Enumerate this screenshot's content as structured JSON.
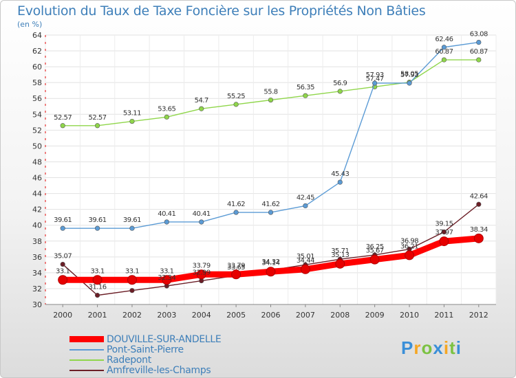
{
  "chart_data": {
    "type": "line",
    "title": "Evolution du Taux de Taxe Foncière sur les Propriétés Non Bâties",
    "subtitle": "(en %)",
    "xlabel": "",
    "ylabel": "",
    "ylim": [
      30,
      64
    ],
    "yticks": [
      30,
      32,
      34,
      36,
      38,
      40,
      42,
      44,
      46,
      48,
      50,
      52,
      54,
      56,
      58,
      60,
      62,
      64
    ],
    "categories": [
      "2000",
      "2001",
      "2002",
      "2003",
      "2004",
      "2005",
      "2006",
      "2007",
      "2008",
      "2009",
      "2010",
      "2011",
      "2012"
    ],
    "grid": true,
    "series": [
      {
        "name": "DOUVILLE-SUR-ANDELLE",
        "color": "#ff0000",
        "values": [
          33.1,
          33.1,
          33.1,
          33.1,
          33.79,
          33.79,
          34.14,
          34.44,
          35.13,
          35.67,
          36.21,
          37.97,
          38.34
        ],
        "labels": [
          "33.1",
          "33.1",
          "33.1",
          "33.1",
          "33.79",
          "33.79",
          "34.14",
          "34.44",
          "35.13",
          "35.67",
          "36.21",
          "37.97",
          "38.34"
        ]
      },
      {
        "name": "Pont-Saint-Pierre",
        "color": "#5b9bd5",
        "values": [
          39.61,
          39.61,
          39.61,
          40.41,
          40.41,
          41.62,
          41.62,
          42.45,
          45.43,
          57.93,
          57.93,
          62.46,
          63.08
        ],
        "labels": [
          "39.61",
          "39.61",
          "39.61",
          "40.41",
          "40.41",
          "41.62",
          "41.62",
          "42.45",
          "45.43",
          "57.93",
          "57.93",
          "62.46",
          "63.08"
        ]
      },
      {
        "name": "Radepont",
        "color": "#8fd64a",
        "values": [
          52.57,
          52.57,
          53.11,
          53.65,
          54.7,
          55.25,
          55.8,
          56.35,
          56.9,
          57.47,
          58.05,
          60.87,
          60.87
        ],
        "labels": [
          "52.57",
          "52.57",
          "53.11",
          "53.65",
          "54.7",
          "55.25",
          "55.8",
          "56.35",
          "56.9",
          "57.47",
          "58.05",
          "60.87",
          "60.87"
        ]
      },
      {
        "name": "Amfreville-les-Champs",
        "color": "#6b1e26",
        "values": [
          35.07,
          31.16,
          31.76,
          32.34,
          32.99,
          33.65,
          34.32,
          35.01,
          35.71,
          36.25,
          36.98,
          39.15,
          42.64
        ],
        "labels": [
          "35.07",
          "31.16",
          "",
          "32.34",
          "32.99",
          "33.65",
          "34.32",
          "35.01",
          "35.71",
          "36.25",
          "36.98",
          "39.15",
          "42.64"
        ]
      }
    ]
  },
  "legend": {
    "items": [
      {
        "label": "DOUVILLE-SUR-ANDELLE",
        "color": "#ff0000"
      },
      {
        "label": "Pont-Saint-Pierre",
        "color": "#5b9bd5"
      },
      {
        "label": "Radepont",
        "color": "#8fd64a"
      },
      {
        "label": "Amfreville-les-Champs",
        "color": "#6b1e26"
      }
    ]
  },
  "brand": {
    "letters": [
      "P",
      "r",
      "o",
      "x",
      "i",
      "t",
      "i"
    ],
    "colors": [
      "#3a8fd8",
      "#f5a623",
      "#7cc243",
      "#3a8fd8",
      "#f5a623",
      "#7cc243",
      "#3a8fd8"
    ]
  }
}
